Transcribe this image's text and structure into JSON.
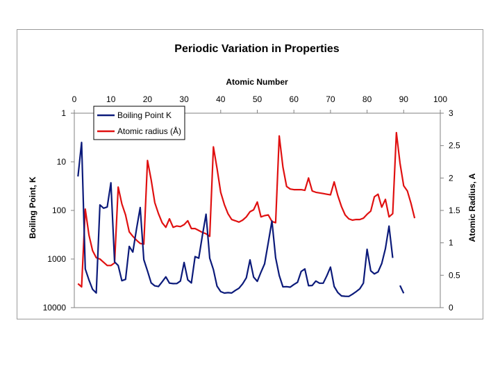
{
  "chart_data": {
    "type": "line",
    "title": "Periodic Variation in Properties",
    "xlabel": "Atomic Number",
    "ylabel_left": "Boiling Point, K",
    "ylabel_right": "Atomic Radius, A",
    "x_range": [
      0,
      100
    ],
    "x_ticks": [
      "0",
      "10",
      "20",
      "30",
      "40",
      "50",
      "60",
      "70",
      "80",
      "90",
      "100"
    ],
    "y_left_scale": "log-reversed",
    "y_left_range": [
      1,
      10000
    ],
    "y_left_ticks": [
      "1",
      "10",
      "100",
      "1000",
      "10000"
    ],
    "y_right_range": [
      0,
      3
    ],
    "y_right_ticks": [
      "0",
      "0.5",
      "1",
      "1.5",
      "2",
      "2.5",
      "3"
    ],
    "legend_position": "top-left",
    "series": [
      {
        "name": "Boiling Point K",
        "axis": "left",
        "color": "#0b1a7a",
        "points": [
          [
            1,
            20
          ],
          [
            2,
            4
          ],
          [
            3,
            1600
          ],
          [
            4,
            2700
          ],
          [
            5,
            4200
          ],
          [
            6,
            5000
          ],
          [
            7,
            77
          ],
          [
            8,
            90
          ],
          [
            9,
            85
          ],
          [
            10,
            27
          ],
          [
            11,
            1150
          ],
          [
            12,
            1360
          ],
          [
            13,
            2790
          ],
          [
            14,
            2620
          ],
          [
            15,
            550
          ],
          [
            16,
            720
          ],
          [
            17,
            240
          ],
          [
            18,
            87
          ],
          [
            19,
            1030
          ],
          [
            20,
            1760
          ],
          [
            21,
            3100
          ],
          [
            22,
            3560
          ],
          [
            23,
            3680
          ],
          [
            24,
            2940
          ],
          [
            25,
            2330
          ],
          [
            26,
            3130
          ],
          [
            27,
            3200
          ],
          [
            28,
            3190
          ],
          [
            29,
            2840
          ],
          [
            30,
            1180
          ],
          [
            31,
            2680
          ],
          [
            32,
            3100
          ],
          [
            33,
            890
          ],
          [
            34,
            960
          ],
          [
            35,
            330
          ],
          [
            36,
            120
          ],
          [
            37,
            960
          ],
          [
            38,
            1650
          ],
          [
            39,
            3610
          ],
          [
            40,
            4680
          ],
          [
            41,
            5020
          ],
          [
            42,
            4910
          ],
          [
            43,
            5000
          ],
          [
            44,
            4420
          ],
          [
            45,
            4000
          ],
          [
            46,
            3240
          ],
          [
            47,
            2440
          ],
          [
            48,
            1040
          ],
          [
            49,
            2350
          ],
          [
            50,
            2870
          ],
          [
            51,
            1860
          ],
          [
            52,
            1260
          ],
          [
            53,
            460
          ],
          [
            54,
            165
          ],
          [
            55,
            940
          ],
          [
            56,
            2170
          ],
          [
            57,
            3730
          ],
          [
            58,
            3700
          ],
          [
            59,
            3790
          ],
          [
            60,
            3340
          ],
          [
            61,
            3000
          ],
          [
            62,
            1800
          ],
          [
            63,
            1600
          ],
          [
            64,
            3540
          ],
          [
            65,
            3500
          ],
          [
            66,
            2840
          ],
          [
            67,
            3140
          ],
          [
            68,
            3140
          ],
          [
            69,
            2220
          ],
          [
            70,
            1470
          ],
          [
            71,
            3670
          ],
          [
            72,
            4880
          ],
          [
            73,
            5730
          ],
          [
            74,
            5830
          ],
          [
            75,
            5870
          ],
          [
            76,
            5300
          ],
          [
            77,
            4700
          ],
          [
            78,
            4100
          ],
          [
            79,
            3130
          ],
          [
            80,
            630
          ],
          [
            81,
            1750
          ],
          [
            82,
            2020
          ],
          [
            83,
            1840
          ],
          [
            84,
            1240
          ],
          [
            85,
            610
          ],
          [
            86,
            210
          ],
          [
            87,
            950
          ]
        ],
        "points_segment_2": [
          [
            89,
            3500
          ],
          [
            90,
            5060
          ]
        ]
      },
      {
        "name": "Atomic radius (Å)",
        "axis": "right",
        "color": "#e01010",
        "points": [
          [
            1,
            0.37
          ],
          [
            2,
            0.32
          ],
          [
            3,
            1.52
          ],
          [
            4,
            1.12
          ],
          [
            5,
            0.88
          ],
          [
            6,
            0.77
          ],
          [
            7,
            0.75
          ],
          [
            8,
            0.7
          ],
          [
            9,
            0.65
          ],
          [
            10,
            0.65
          ],
          [
            11,
            0.69
          ],
          [
            12,
            1.86
          ],
          [
            13,
            1.6
          ],
          [
            14,
            1.43
          ],
          [
            15,
            1.17
          ],
          [
            16,
            1.1
          ],
          [
            17,
            1.04
          ],
          [
            18,
            0.99
          ],
          [
            19,
            0.98
          ],
          [
            20,
            2.27
          ],
          [
            21,
            1.97
          ],
          [
            22,
            1.62
          ],
          [
            23,
            1.45
          ],
          [
            24,
            1.31
          ],
          [
            25,
            1.24
          ],
          [
            26,
            1.37
          ],
          [
            27,
            1.24
          ],
          [
            28,
            1.26
          ],
          [
            29,
            1.25
          ],
          [
            30,
            1.28
          ],
          [
            31,
            1.34
          ],
          [
            32,
            1.22
          ],
          [
            33,
            1.22
          ],
          [
            34,
            1.19
          ],
          [
            35,
            1.16
          ],
          [
            36,
            1.14
          ],
          [
            37,
            1.1
          ],
          [
            38,
            2.48
          ],
          [
            39,
            2.15
          ],
          [
            40,
            1.78
          ],
          [
            41,
            1.59
          ],
          [
            42,
            1.45
          ],
          [
            43,
            1.36
          ],
          [
            44,
            1.34
          ],
          [
            45,
            1.32
          ],
          [
            46,
            1.35
          ],
          [
            47,
            1.4
          ],
          [
            48,
            1.48
          ],
          [
            49,
            1.51
          ],
          [
            50,
            1.63
          ],
          [
            51,
            1.4
          ],
          [
            52,
            1.42
          ],
          [
            53,
            1.43
          ],
          [
            54,
            1.33
          ],
          [
            55,
            1.31
          ],
          [
            56,
            2.65
          ],
          [
            57,
            2.17
          ],
          [
            58,
            1.87
          ],
          [
            59,
            1.83
          ],
          [
            60,
            1.82
          ],
          [
            61,
            1.82
          ],
          [
            62,
            1.82
          ],
          [
            63,
            1.81
          ],
          [
            64,
            2.0
          ],
          [
            65,
            1.8
          ],
          [
            66,
            1.78
          ],
          [
            67,
            1.77
          ],
          [
            68,
            1.76
          ],
          [
            69,
            1.75
          ],
          [
            70,
            1.74
          ],
          [
            71,
            1.94
          ],
          [
            72,
            1.73
          ],
          [
            73,
            1.56
          ],
          [
            74,
            1.43
          ],
          [
            75,
            1.37
          ],
          [
            76,
            1.35
          ],
          [
            77,
            1.36
          ],
          [
            78,
            1.36
          ],
          [
            79,
            1.38
          ],
          [
            80,
            1.44
          ],
          [
            81,
            1.49
          ],
          [
            82,
            1.71
          ],
          [
            83,
            1.75
          ],
          [
            84,
            1.55
          ],
          [
            85,
            1.67
          ],
          [
            86,
            1.4
          ],
          [
            87,
            1.45
          ],
          [
            88,
            2.7
          ],
          [
            89,
            2.23
          ],
          [
            90,
            1.88
          ],
          [
            91,
            1.8
          ],
          [
            92,
            1.61
          ],
          [
            93,
            1.38
          ]
        ]
      }
    ]
  }
}
